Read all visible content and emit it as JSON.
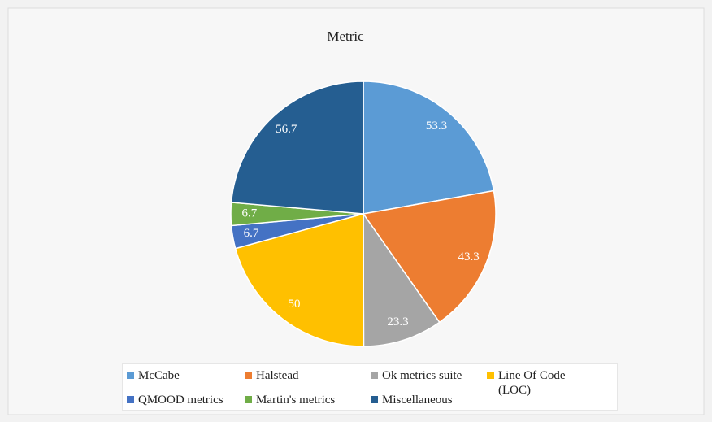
{
  "chart_data": {
    "type": "pie",
    "title": "Metric",
    "categories": [
      "McCabe",
      "Halstead",
      "Ok metrics suite",
      "Line Of Code (LOC)",
      "QMOOD metrics",
      "Martin's metrics",
      "Miscellaneous"
    ],
    "values": [
      53.3,
      43.3,
      23.3,
      50,
      6.7,
      6.7,
      56.7
    ],
    "colors": [
      "#5b9bd5",
      "#ed7d31",
      "#a5a5a5",
      "#ffc000",
      "#4472c4",
      "#70ad47",
      "#255e91"
    ],
    "legend": "bottom"
  }
}
